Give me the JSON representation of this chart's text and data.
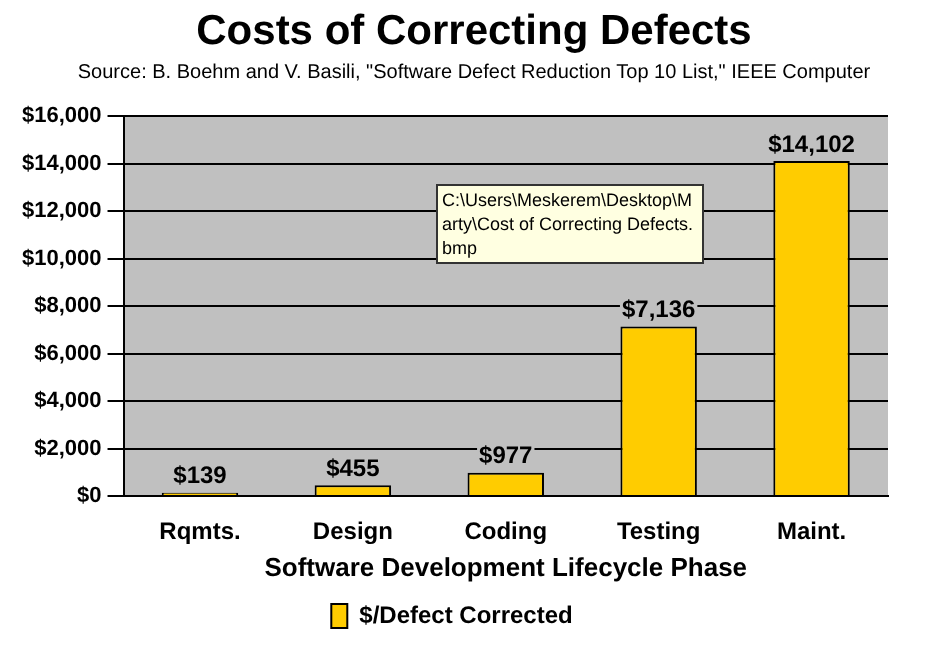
{
  "chart_data": {
    "type": "bar",
    "title": "Costs of Correcting Defects",
    "subtitle": "Source: B. Boehm and V. Basili, \"Software Defect Reduction Top 10 List,\" IEEE Computer",
    "xlabel": "Software Development Lifecycle Phase",
    "categories": [
      "Rqmts.",
      "Design",
      "Coding",
      "Testing",
      "Maint."
    ],
    "series": [
      {
        "name": "$/Defect Corrected",
        "color": "#ffcc00",
        "values": [
          139,
          455,
          977,
          7136,
          14102
        ],
        "value_labels": [
          "$139",
          "$455",
          "$977",
          "$7,136",
          "$14,102"
        ]
      }
    ],
    "ylim": [
      0,
      16000
    ],
    "yticks": [
      {
        "value": 0,
        "label": "$0"
      },
      {
        "value": 2000,
        "label": "$2,000"
      },
      {
        "value": 4000,
        "label": "$4,000"
      },
      {
        "value": 6000,
        "label": "$6,000"
      },
      {
        "value": 8000,
        "label": "$8,000"
      },
      {
        "value": 10000,
        "label": "$10,000"
      },
      {
        "value": 12000,
        "label": "$12,000"
      },
      {
        "value": 14000,
        "label": "$14,000"
      },
      {
        "value": 16000,
        "label": "$16,000"
      }
    ],
    "grid": "y",
    "legend": "bottom",
    "annotations": [
      "C:\\Users\\Meskerem\\Desktop\\Marty\\Cost of Correcting Defects.bmp"
    ]
  }
}
